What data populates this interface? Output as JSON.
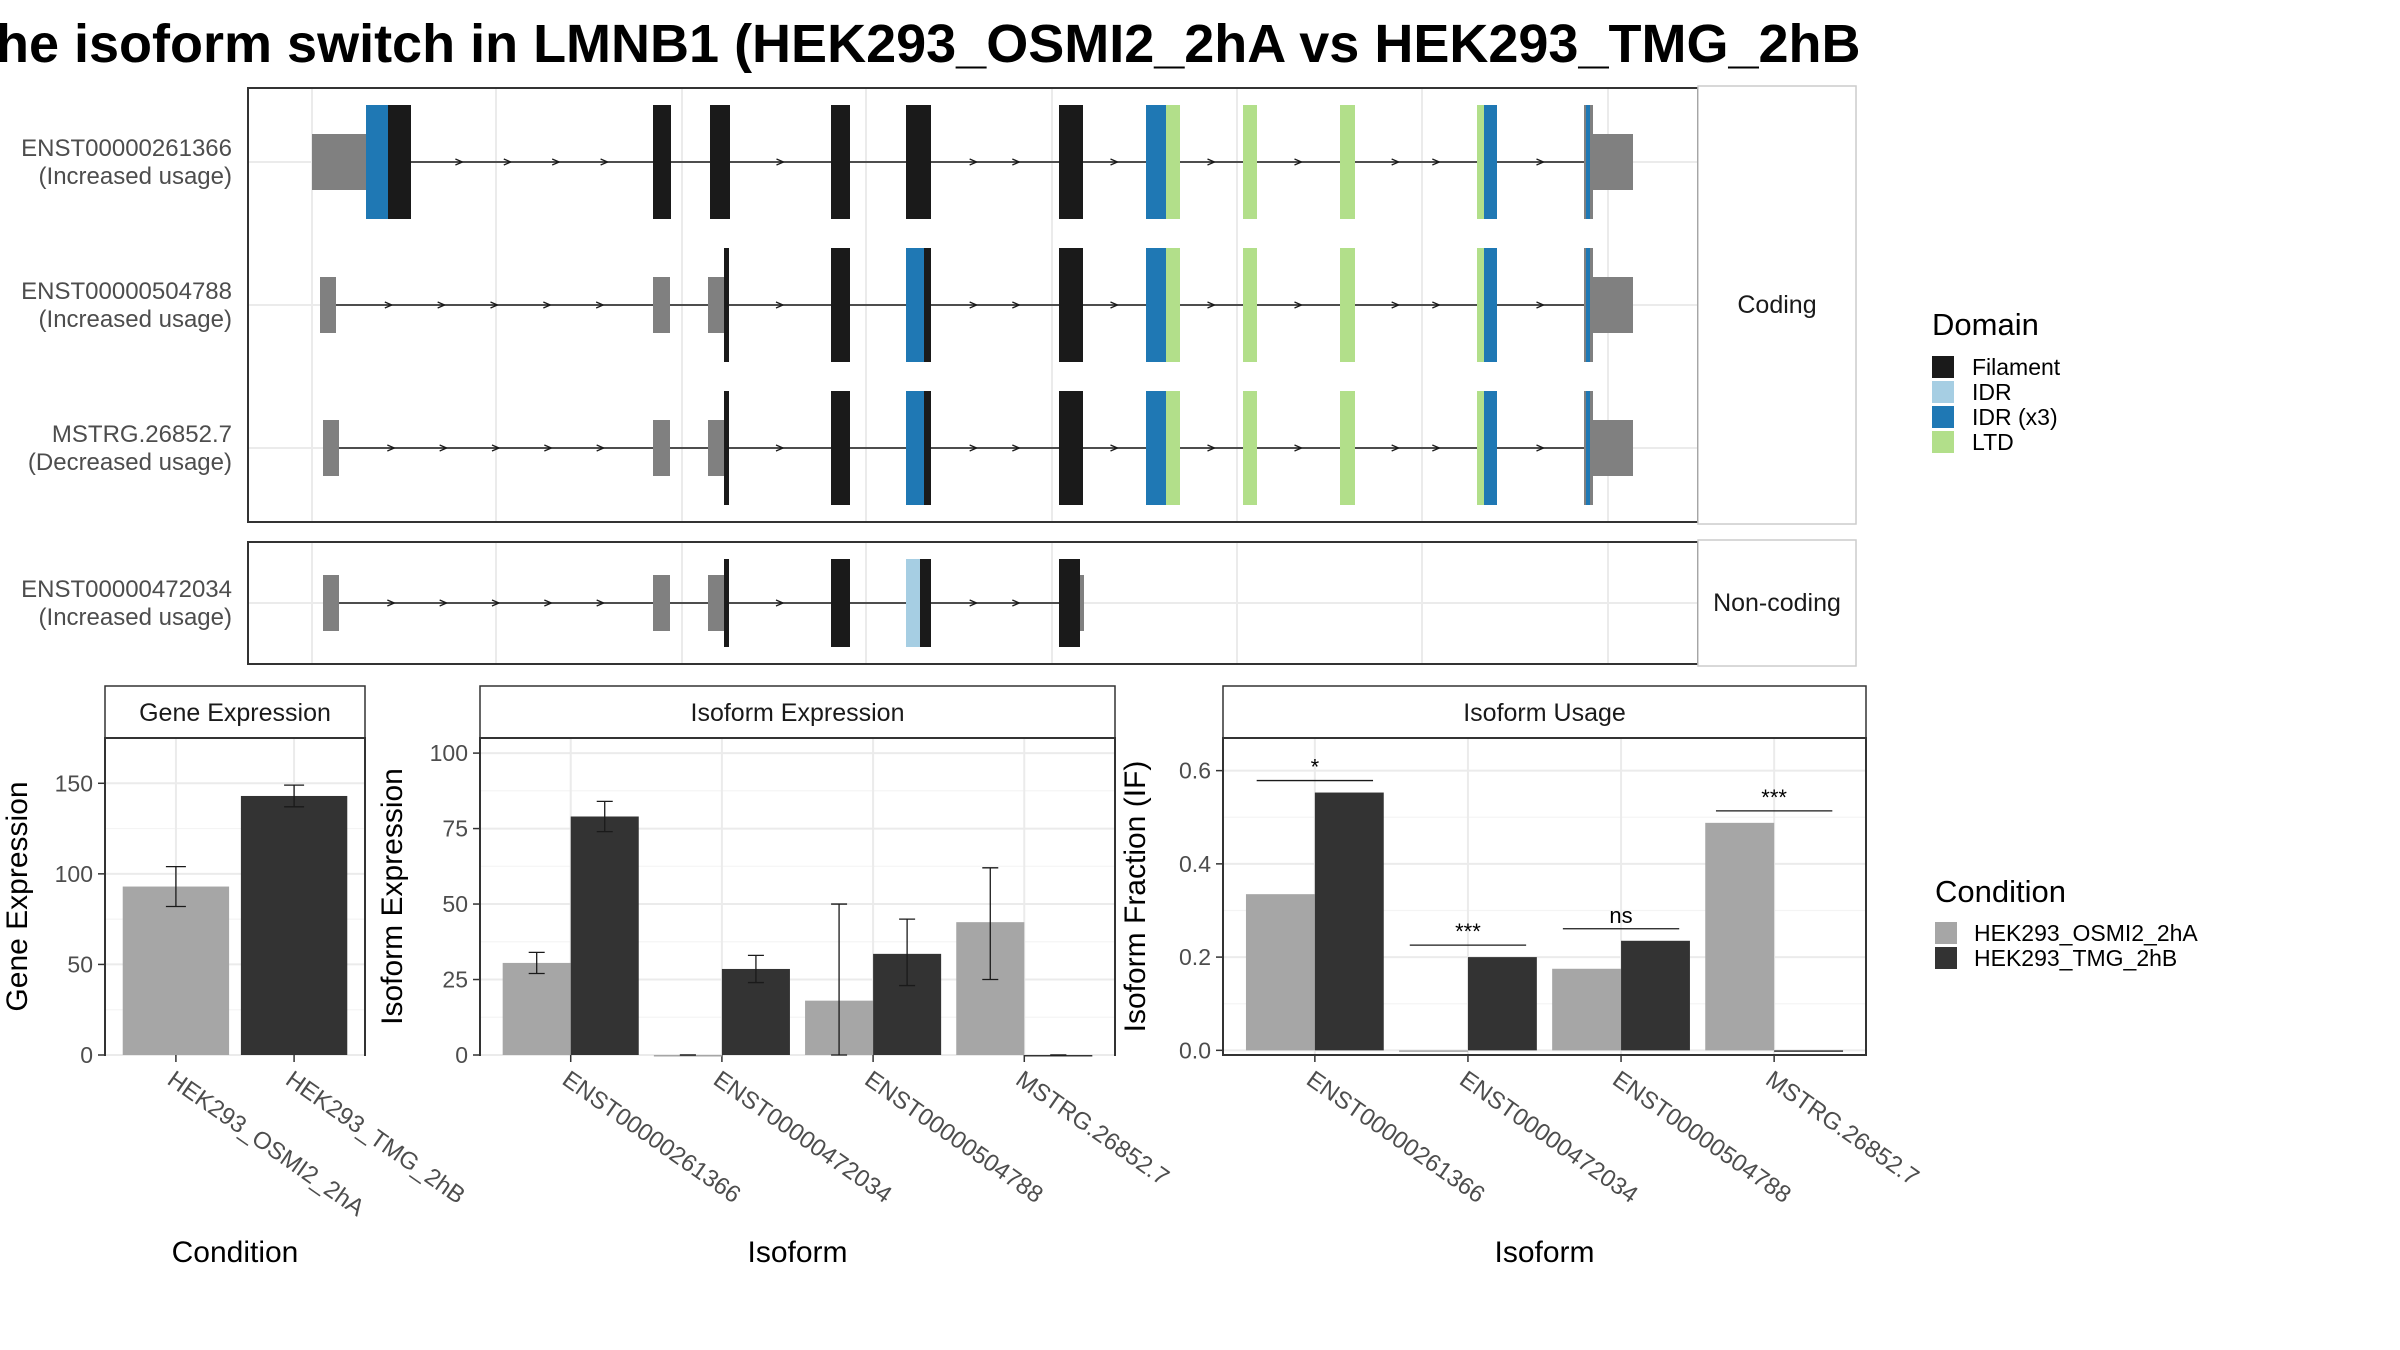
{
  "chart_data": [
    {
      "type": "transcript-structure",
      "title": "he isoform switch in LMNB1 (HEK293_OSMI2_2hA vs HEK293_TMG_2hB",
      "groups": [
        "Coding",
        "Non-coding"
      ],
      "transcripts": [
        {
          "id": "ENST00000261366",
          "usage": "(Increased usage)",
          "group": "Coding"
        },
        {
          "id": "ENST00000504788",
          "usage": "(Increased usage)",
          "group": "Coding"
        },
        {
          "id": "MSTRG.26852.7",
          "usage": "(Decreased usage)",
          "group": "Coding"
        },
        {
          "id": "ENST00000472034",
          "usage": "(Increased usage)",
          "group": "Non-coding"
        }
      ],
      "legend": {
        "title": "Domain",
        "items": [
          {
            "label": "Filament",
            "color": "#1a1a1a"
          },
          {
            "label": "IDR",
            "color": "#a6cee3"
          },
          {
            "label": "IDR (x3)",
            "color": "#1f78b4"
          },
          {
            "label": "LTD",
            "color": "#b2df8a"
          }
        ]
      },
      "utr_color": "#808080"
    },
    {
      "type": "bar",
      "title": "Gene Expression",
      "xlabel": "Condition",
      "ylabel": "Gene Expression",
      "ylim": [
        0,
        175
      ],
      "yticks": [
        0,
        50,
        100,
        150
      ],
      "categories": [
        "HEK293_OSMI2_2hA",
        "HEK293_TMG_2hB"
      ],
      "values": [
        93,
        143
      ],
      "errors": [
        [
          82,
          104
        ],
        [
          137,
          149
        ]
      ],
      "colors": [
        "#a6a6a6",
        "#333333"
      ]
    },
    {
      "type": "bar",
      "title": "Isoform Expression",
      "xlabel": "Isoform",
      "ylabel": "Isoform Expression",
      "ylim": [
        0,
        105
      ],
      "yticks": [
        0,
        25,
        50,
        75,
        100
      ],
      "categories": [
        "ENST00000261366",
        "ENST00000472034",
        "ENST00000504788",
        "MSTRG.26852.7"
      ],
      "series": [
        {
          "name": "HEK293_OSMI2_2hA",
          "values": [
            30.5,
            0,
            18,
            44
          ],
          "errors": [
            [
              27,
              34
            ],
            [
              0,
              0
            ],
            [
              0,
              50
            ],
            [
              25,
              62
            ]
          ]
        },
        {
          "name": "HEK293_TMG_2hB",
          "values": [
            79,
            28.5,
            33.5,
            0
          ],
          "errors": [
            [
              74,
              84
            ],
            [
              24,
              33
            ],
            [
              23,
              45
            ],
            [
              0,
              0
            ]
          ]
        }
      ]
    },
    {
      "type": "bar",
      "title": "Isoform Usage",
      "xlabel": "Isoform",
      "ylabel": "Isoform Fraction (IF)",
      "ylim": [
        -0.01,
        0.67
      ],
      "yticks": [
        0.0,
        0.2,
        0.4,
        0.6
      ],
      "ytick_labels": [
        "0.0",
        "0.2",
        "0.4",
        "0.6"
      ],
      "categories": [
        "ENST00000261366",
        "ENST00000472034",
        "ENST00000504788",
        "MSTRG.26852.7"
      ],
      "series": [
        {
          "name": "HEK293_OSMI2_2hA",
          "values": [
            0.335,
            0.0,
            0.175,
            0.488
          ]
        },
        {
          "name": "HEK293_TMG_2hB",
          "values": [
            0.553,
            0.2,
            0.235,
            0.0
          ]
        }
      ],
      "significance": [
        "*",
        "***",
        "ns",
        "***"
      ]
    }
  ],
  "condition_legend": {
    "title": "Condition",
    "items": [
      {
        "label": "HEK293_OSMI2_2hA",
        "color": "#a6a6a6"
      },
      {
        "label": "HEK293_TMG_2hB",
        "color": "#333333"
      }
    ]
  }
}
